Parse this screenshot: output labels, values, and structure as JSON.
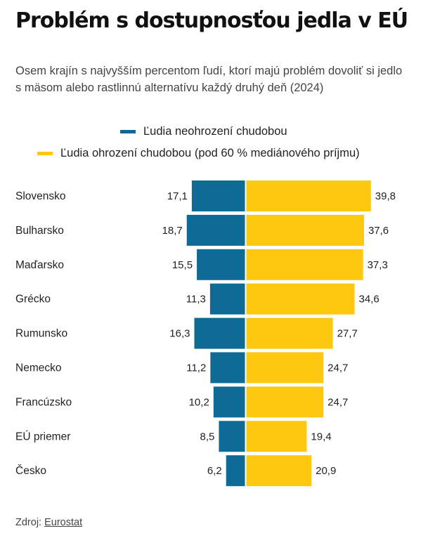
{
  "title": "Problém s dostupnosťou jedla v EÚ",
  "subtitle": "Osem krajín s najvyšším percentom ľudí, ktorí majú problém dovoliť si jedlo s mäsom alebo rastlinnú alternatívu každý druhý deň (2024)",
  "legend": [
    {
      "label": "Ľudia neohrození chudobou",
      "color": "#0e6b96"
    },
    {
      "label": "Ľudia ohrození chudobou (pod 60 % mediánového príjmu)",
      "color": "#fdc80f"
    }
  ],
  "source": {
    "prefix": "Zdroj:",
    "link": "Eurostat"
  },
  "chart_data": {
    "type": "bar",
    "orientation": "horizontal-diverging",
    "categories": [
      "Slovensko",
      "Bulharsko",
      "Maďarsko",
      "Grécko",
      "Rumunsko",
      "Nemecko",
      "Francúzsko",
      "EÚ priemer",
      "Česko"
    ],
    "series": [
      {
        "name": "Ľudia neohrození chudobou",
        "values": [
          17.1,
          18.7,
          15.5,
          11.3,
          16.3,
          11.2,
          10.2,
          8.5,
          6.2
        ],
        "labels": [
          "17,1",
          "18,7",
          "15,5",
          "11,3",
          "16,3",
          "11,2",
          "10,2",
          "8,5",
          "6,2"
        ],
        "color": "#0e6b96",
        "side": "left"
      },
      {
        "name": "Ľudia ohrození chudobou (pod 60 % mediánového príjmu)",
        "values": [
          39.8,
          37.6,
          37.3,
          34.6,
          27.7,
          24.7,
          24.7,
          19.4,
          20.9
        ],
        "labels": [
          "39,8",
          "37,6",
          "37,3",
          "34,6",
          "27,7",
          "24,7",
          "24,7",
          "19,4",
          "20,9"
        ],
        "color": "#fdc80f",
        "side": "right"
      }
    ],
    "xlabel": "",
    "ylabel": "",
    "unit": "%",
    "grid": false
  }
}
